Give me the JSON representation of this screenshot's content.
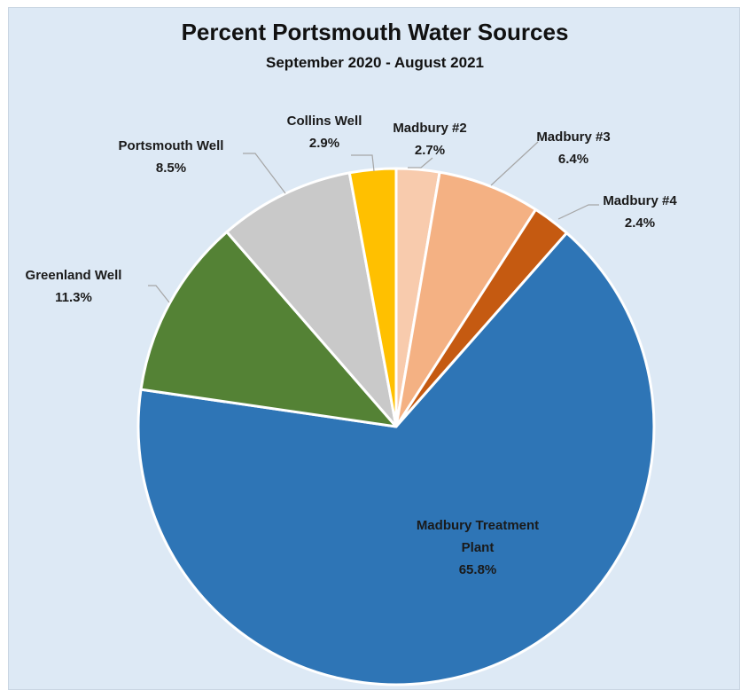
{
  "chart_data": {
    "type": "pie",
    "title": "Percent Portsmouth Water Sources",
    "subtitle": "September 2020 - August 2021",
    "legend": "none",
    "slices": [
      {
        "label": "Madbury #2",
        "value": 2.7,
        "display": "2.7%",
        "color": "#f8cbad"
      },
      {
        "label": "Madbury #3",
        "value": 6.4,
        "display": "6.4%",
        "color": "#f4b183"
      },
      {
        "label": "Madbury #4",
        "value": 2.4,
        "display": "2.4%",
        "color": "#c55a11"
      },
      {
        "label": "Madbury Treatment Plant",
        "value": 65.8,
        "display": "65.8%",
        "color": "#2e75b6"
      },
      {
        "label": "Greenland Well",
        "value": 11.3,
        "display": "11.3%",
        "color": "#548235"
      },
      {
        "label": "Portsmouth Well",
        "value": 8.5,
        "display": "8.5%",
        "color": "#c9c9c9"
      },
      {
        "label": "Collins Well",
        "value": 2.9,
        "display": "2.9%",
        "color": "#ffc000"
      }
    ]
  }
}
